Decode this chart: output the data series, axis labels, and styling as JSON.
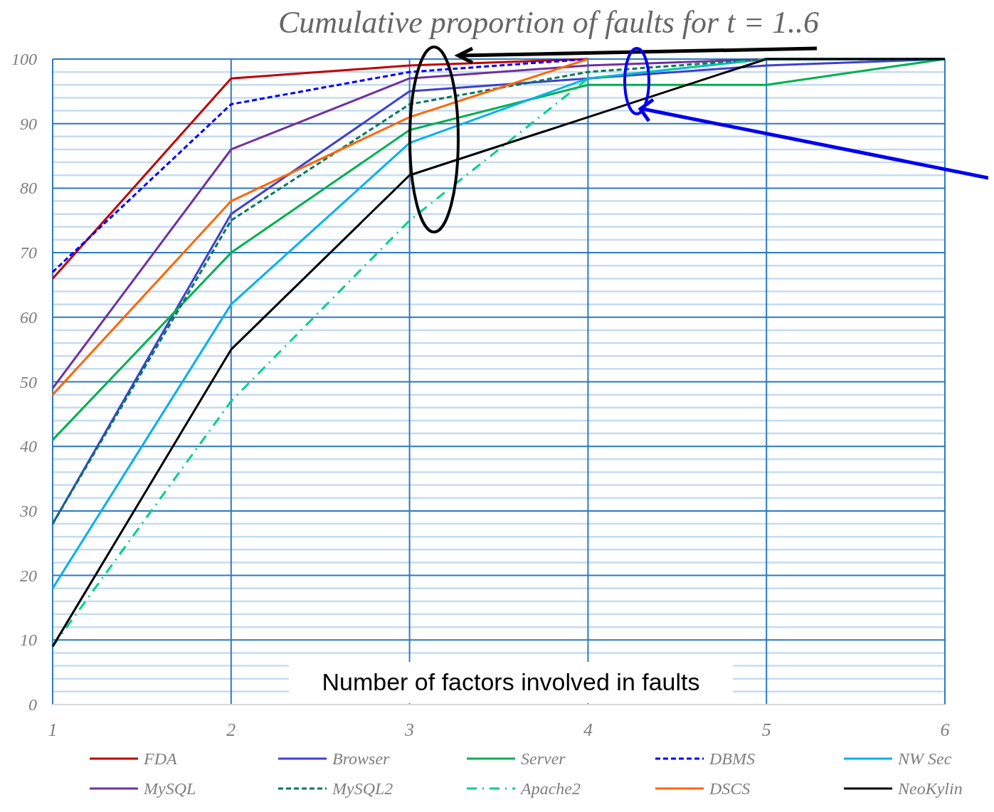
{
  "chart_data": {
    "type": "line",
    "title": "Cumulative proportion of faults for t = 1..6",
    "xlabel": "Number of factors involved in faults",
    "x": [
      1,
      2,
      3,
      4,
      5,
      6
    ],
    "xlim": [
      1,
      6
    ],
    "xticks": [
      1,
      2,
      3,
      4,
      5,
      6
    ],
    "ylim": [
      0,
      100
    ],
    "yticks": [
      0,
      {
        "value": 2,
        "label": null
      },
      {
        "value": 4,
        "label": null
      },
      {
        "value": 6,
        "label": null
      },
      {
        "value": 8,
        "label": null
      },
      10,
      {
        "value": 12,
        "label": null
      },
      {
        "value": 14,
        "label": null
      },
      {
        "value": 16,
        "label": null
      },
      {
        "value": 18,
        "label": null
      },
      20,
      {
        "value": 22,
        "label": null
      },
      {
        "value": 24,
        "label": null
      },
      {
        "value": 26,
        "label": null
      },
      {
        "value": 28,
        "label": null
      },
      30,
      {
        "value": 32,
        "label": null
      },
      {
        "value": 34,
        "label": null
      },
      {
        "value": 36,
        "label": null
      },
      {
        "value": 38,
        "label": null
      },
      40,
      {
        "value": 42,
        "label": null
      },
      {
        "value": 44,
        "label": null
      },
      {
        "value": 46,
        "label": null
      },
      {
        "value": 48,
        "label": null
      },
      50,
      {
        "value": 52,
        "label": null
      },
      {
        "value": 54,
        "label": null
      },
      {
        "value": 56,
        "label": null
      },
      {
        "value": 58,
        "label": null
      },
      60,
      {
        "value": 62,
        "label": null
      },
      {
        "value": 64,
        "label": null
      },
      {
        "value": 66,
        "label": null
      },
      {
        "value": 68,
        "label": null
      },
      70,
      {
        "value": 72,
        "label": null
      },
      {
        "value": 74,
        "label": null
      },
      {
        "value": 76,
        "label": null
      },
      {
        "value": 78,
        "label": null
      },
      80,
      {
        "value": 82,
        "label": null
      },
      {
        "value": 84,
        "label": null
      },
      {
        "value": 86,
        "label": null
      },
      {
        "value": 88,
        "label": null
      },
      90,
      {
        "value": 92,
        "label": null
      },
      {
        "value": 94,
        "label": null
      },
      {
        "value": 96,
        "label": null
      },
      {
        "value": 98,
        "label": null
      },
      100
    ],
    "grid": true,
    "legend": "bottom",
    "marker": "none",
    "series": [
      {
        "name": "FDA",
        "color": "#c00000",
        "values": [
          66,
          97,
          99,
          100,
          null,
          null
        ]
      },
      {
        "name": "Browser",
        "color": "#3f3fcf",
        "values": [
          28,
          76,
          95,
          97,
          99,
          100
        ]
      },
      {
        "name": "Server",
        "color": "#00b050",
        "values": [
          41,
          70,
          89,
          96,
          96,
          100
        ]
      },
      {
        "name": "DBMS",
        "color": "#0000ff",
        "line_style": "dashed",
        "values": [
          67,
          93,
          98,
          100,
          null,
          null
        ]
      },
      {
        "name": "NW Sec",
        "color": "#00b0f0",
        "values": [
          18,
          62,
          87,
          97,
          100,
          100
        ]
      },
      {
        "name": "MySQL",
        "color": "#7030a0",
        "values": [
          49,
          86,
          97,
          99,
          100,
          100
        ]
      },
      {
        "name": "MySQL2",
        "color": "#00785a",
        "line_style": "dashed",
        "values": [
          28,
          75,
          93,
          98,
          100,
          100
        ]
      },
      {
        "name": "Apache2",
        "color": "#00d08a",
        "line_style": "dashdot",
        "values": [
          9,
          47,
          75,
          97,
          100,
          100
        ]
      },
      {
        "name": "DSCS",
        "color": "#ff6600",
        "values": [
          48,
          78,
          91,
          100,
          null,
          null
        ]
      },
      {
        "name": "NeoKylin",
        "color": "#000000",
        "values": [
          9,
          55,
          82,
          91,
          100,
          100
        ]
      }
    ]
  }
}
